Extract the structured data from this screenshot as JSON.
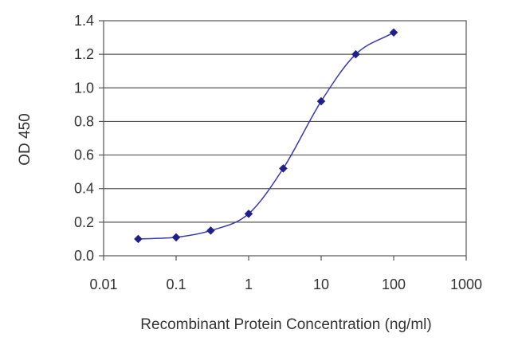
{
  "chart_data": {
    "type": "line",
    "title": "",
    "xlabel": "Recombinant Protein Concentration (ng/ml)",
    "ylabel": "OD 450",
    "xscale": "log",
    "xlim": [
      0.01,
      1000
    ],
    "ylim": [
      0,
      1.4
    ],
    "xticks": [
      "0.01",
      "0.1",
      "1",
      "10",
      "100",
      "1000"
    ],
    "xtick_values": [
      0.01,
      0.1,
      1,
      10,
      100,
      1000
    ],
    "yticks": [
      "0.0",
      "0.2",
      "0.4",
      "0.6",
      "0.8",
      "1.0",
      "1.2",
      "1.4"
    ],
    "ytick_values": [
      0,
      0.2,
      0.4,
      0.6,
      0.8,
      1.0,
      1.2,
      1.4
    ],
    "grid": "horizontal",
    "legend": "none",
    "series": [
      {
        "x": [
          0.03,
          0.1,
          0.3,
          1,
          3,
          10,
          30,
          100
        ],
        "y": [
          0.1,
          0.11,
          0.15,
          0.25,
          0.52,
          0.92,
          1.2,
          1.33
        ],
        "color": "#1f1f8f",
        "marker": "diamond"
      }
    ]
  }
}
